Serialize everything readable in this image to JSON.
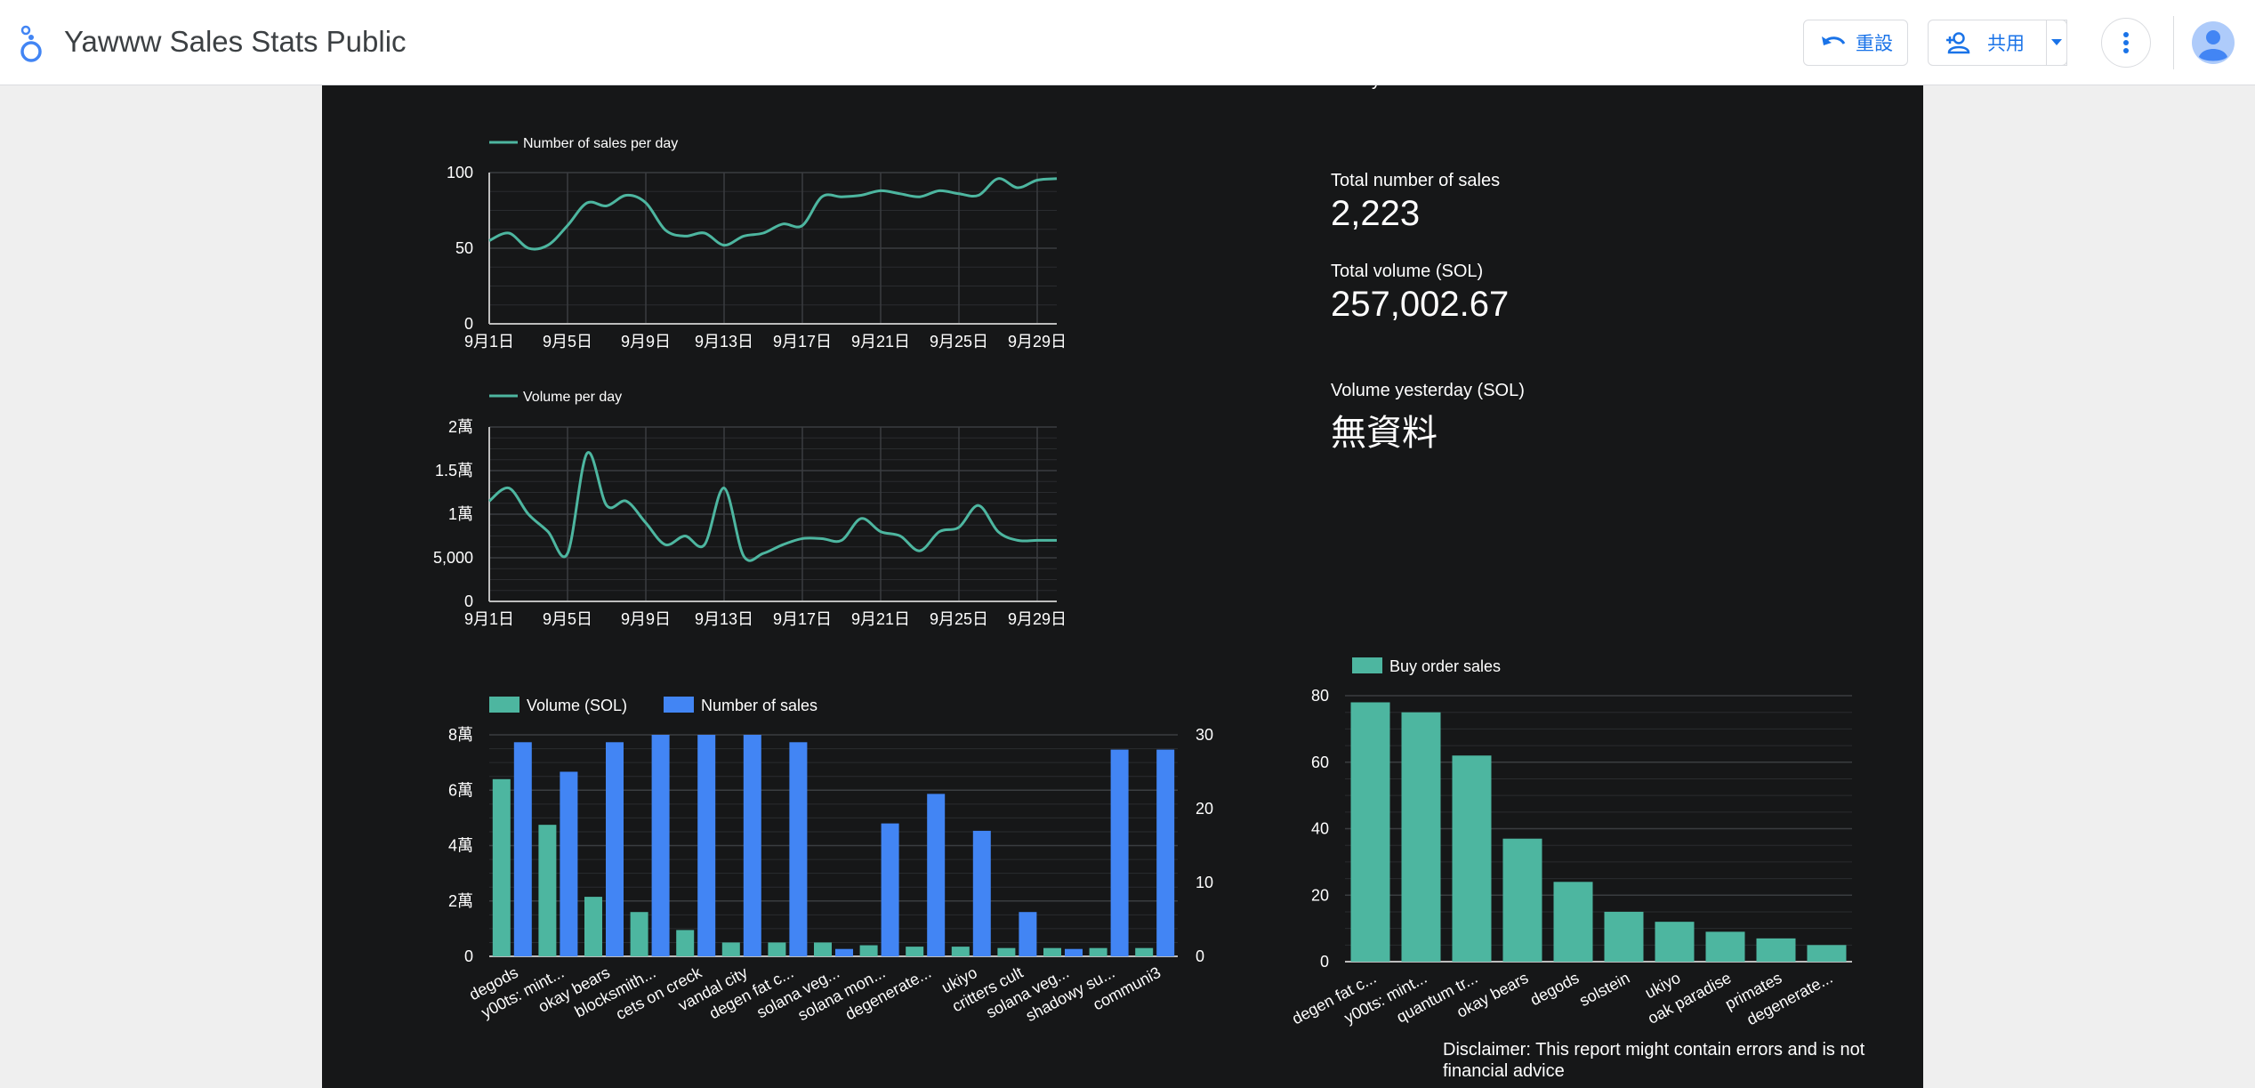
{
  "header": {
    "title": "Yawww Sales Stats Public",
    "reset_label": "重設",
    "share_label": "共用"
  },
  "colors": {
    "teal": "#4db6a0",
    "blue": "#4285f4",
    "canvas": "#161718",
    "accent": "#1a73e8"
  },
  "icons": {
    "logo": "looker-studio-logo-icon",
    "reset": "undo-icon",
    "share": "person-add-icon",
    "dropdown": "caret-down-icon",
    "more": "more-vert-icon",
    "avatar": "account-circle-icon"
  },
  "scorecards": {
    "total_sales_label": "Total number of sales",
    "total_sales_value": "2,223",
    "total_volume_label": "Total volume (SOL)",
    "total_volume_value": "257,002.67",
    "volume_yesterday_label": "Volume yesterday (SOL)",
    "volume_yesterday_value": "無資料"
  },
  "disclaimer": "Disclaimer: This report might contain errors and is not financial advice",
  "chart_data": [
    {
      "id": "sales-per-day",
      "type": "line",
      "legend": "Number of sales per day",
      "x": [
        "9月1日",
        "9月2日",
        "9月3日",
        "9月4日",
        "9月5日",
        "9月6日",
        "9月7日",
        "9月8日",
        "9月9日",
        "9月10日",
        "9月11日",
        "9月12日",
        "9月13日",
        "9月14日",
        "9月15日",
        "9月16日",
        "9月17日",
        "9月18日",
        "9月19日",
        "9月20日",
        "9月21日",
        "9月22日",
        "9月23日",
        "9月24日",
        "9月25日",
        "9月26日",
        "9月27日",
        "9月28日",
        "9月29日",
        "9月30日"
      ],
      "x_tick_labels": [
        "9月1日",
        "9月5日",
        "9月9日",
        "9月13日",
        "9月17日",
        "9月21日",
        "9月25日",
        "9月29日"
      ],
      "values": [
        55,
        60,
        50,
        52,
        65,
        80,
        78,
        85,
        80,
        62,
        58,
        60,
        52,
        58,
        60,
        66,
        65,
        84,
        84,
        85,
        88,
        86,
        84,
        88,
        86,
        85,
        96,
        90,
        95,
        96
      ],
      "ylim": [
        0,
        100
      ],
      "y_ticks": [
        0,
        50,
        100
      ],
      "y_tick_labels": [
        "0",
        "50",
        "100"
      ]
    },
    {
      "id": "volume-per-day",
      "type": "line",
      "legend": "Volume per day",
      "x": [
        "9月1日",
        "9月2日",
        "9月3日",
        "9月4日",
        "9月5日",
        "9月6日",
        "9月7日",
        "9月8日",
        "9月9日",
        "9月10日",
        "9月11日",
        "9月12日",
        "9月13日",
        "9月14日",
        "9月15日",
        "9月16日",
        "9月17日",
        "9月18日",
        "9月19日",
        "9月20日",
        "9月21日",
        "9月22日",
        "9月23日",
        "9月24日",
        "9月25日",
        "9月26日",
        "9月27日",
        "9月28日",
        "9月29日",
        "9月30日"
      ],
      "x_tick_labels": [
        "9月1日",
        "9月5日",
        "9月9日",
        "9月13日",
        "9月17日",
        "9月21日",
        "9月25日",
        "9月29日"
      ],
      "values": [
        11500,
        13000,
        10000,
        8000,
        5500,
        17000,
        11000,
        11500,
        9000,
        6500,
        7500,
        6500,
        13000,
        5200,
        5500,
        6500,
        7200,
        7200,
        7000,
        9500,
        8000,
        7500,
        5800,
        8000,
        8500,
        11000,
        8000,
        7000,
        7000,
        7000
      ],
      "ylim": [
        0,
        20000
      ],
      "y_ticks": [
        0,
        5000,
        10000,
        15000,
        20000
      ],
      "y_tick_labels": [
        "0",
        "5,000",
        "1萬",
        "1.5萬",
        "2萬"
      ]
    },
    {
      "id": "collection-volume-sales",
      "type": "bar",
      "categories": [
        "degods",
        "y00ts: mint...",
        "okay bears",
        "blocksmith...",
        "cets on creck",
        "vandal city",
        "degen fat c...",
        "solana veg...",
        "solana mon...",
        "degenerate...",
        "ukiyo",
        "critters cult",
        "solana veg...",
        "shadowy su...",
        "communi3"
      ],
      "series": [
        {
          "name": "Volume (SOL)",
          "axis": "left",
          "values": [
            64000,
            47500,
            21500,
            16000,
            9500,
            5000,
            5000,
            5000,
            4000,
            3500,
            3500,
            3000,
            3000,
            3000,
            3000
          ]
        },
        {
          "name": "Number of sales",
          "axis": "right",
          "values": [
            29,
            25,
            29,
            30,
            30,
            30,
            29,
            1,
            18,
            22,
            17,
            6,
            1,
            28,
            28
          ]
        }
      ],
      "ylim_left": [
        0,
        80000
      ],
      "y_ticks_left": [
        0,
        20000,
        40000,
        60000,
        80000
      ],
      "y_tick_labels_left": [
        "0",
        "2萬",
        "4萬",
        "6萬",
        "8萬"
      ],
      "ylim_right": [
        0,
        30
      ],
      "y_ticks_right": [
        0,
        10,
        20,
        30
      ],
      "y_tick_labels_right": [
        "0",
        "10",
        "20",
        "30"
      ]
    },
    {
      "id": "buy-order-sales",
      "type": "bar",
      "categories": [
        "degen fat c...",
        "y00ts: mint...",
        "quantum tr...",
        "okay bears",
        "degods",
        "solstein",
        "ukiyo",
        "oak paradise",
        "primates",
        "degenerate..."
      ],
      "series": [
        {
          "name": "Buy order sales",
          "values": [
            78,
            75,
            62,
            37,
            24,
            15,
            12,
            9,
            7,
            5
          ]
        }
      ],
      "ylim": [
        0,
        80
      ],
      "y_ticks": [
        0,
        20,
        40,
        60,
        80
      ],
      "y_tick_labels": [
        "0",
        "20",
        "40",
        "60",
        "80"
      ]
    }
  ]
}
